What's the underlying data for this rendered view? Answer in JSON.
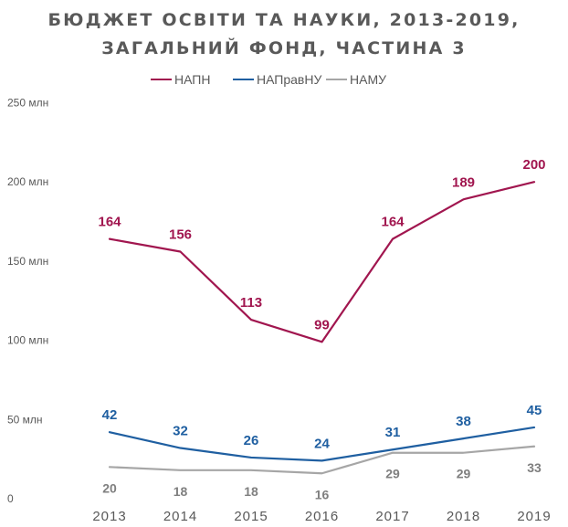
{
  "title_line1": "БЮДЖЕТ ОСВІТИ ТА НАУКИ, 2013-2019,",
  "title_line2": "ЗАГАЛЬНИЙ ФОНД, ЧАСТИНА 3",
  "colors": {
    "title": "#595959",
    "axis_text": "#595959"
  },
  "chart_data": {
    "type": "line",
    "title": "БЮДЖЕТ ОСВІТИ ТА НАУКИ, 2013-2019, ЗАГАЛЬНИЙ ФОНД, ЧАСТИНА 3",
    "xlabel": "",
    "ylabel": "",
    "categories": [
      "2013",
      "2014",
      "2015",
      "2016",
      "2017",
      "2018",
      "2019"
    ],
    "ylim": [
      0,
      250
    ],
    "y_ticks": [
      0,
      50,
      100,
      150,
      200,
      250
    ],
    "y_tick_labels": [
      "0",
      "50 млн",
      "100 млн",
      "150 млн",
      "200 млн",
      "250 млн"
    ],
    "grid": false,
    "legend_position": "top-center",
    "series": [
      {
        "name": "НАПН",
        "color": "#a1164f",
        "values": [
          164,
          156,
          113,
          99,
          164,
          189,
          200
        ],
        "labels": [
          "164",
          "156",
          "113",
          "99",
          "164",
          "189",
          "200"
        ],
        "label_position": "above"
      },
      {
        "name": "НАПравНУ",
        "color": "#1f5fa1",
        "values": [
          42,
          32,
          26,
          24,
          31,
          38,
          45
        ],
        "labels": [
          "42",
          "32",
          "26",
          "24",
          "31",
          "38",
          "45"
        ],
        "label_position": "above"
      },
      {
        "name": "НАМУ",
        "color": "#a6a6a6",
        "values": [
          20,
          18,
          18,
          16,
          29,
          29,
          33
        ],
        "labels": [
          "20",
          "18",
          "18",
          "16",
          "29",
          "29",
          "33"
        ],
        "label_position": "below"
      }
    ]
  }
}
